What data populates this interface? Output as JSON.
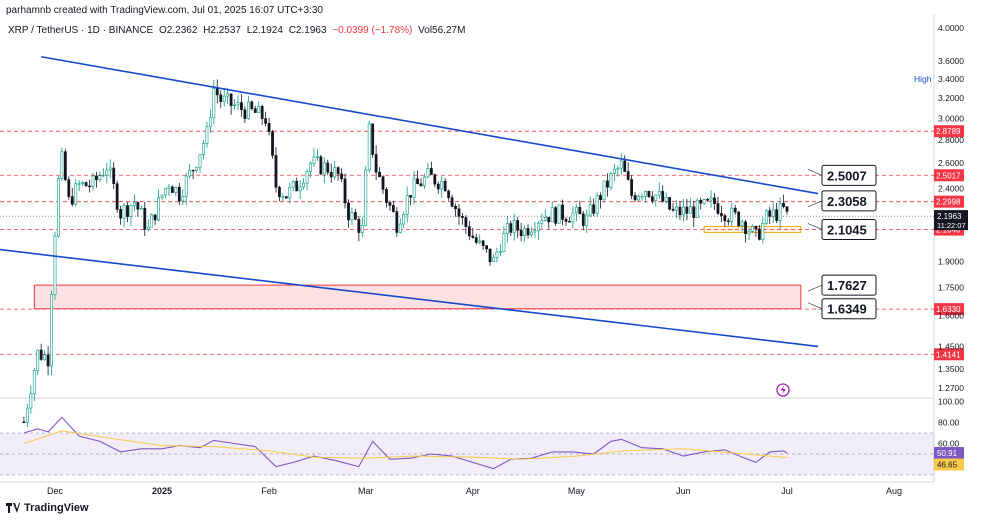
{
  "header": {
    "author_line": "parhamnb created with TradingView.com, Jul 01, 2025 16:07 UTC+3:30"
  },
  "symbol_bar": {
    "title": "XRP / TetherUS · 1D · BINANCE",
    "open": "O2.2362",
    "high": "H2.2537",
    "low": "L2.1924",
    "close": "C2.1963",
    "change": "−0.0399 (−1.78%)",
    "volume": "Vol56.27M",
    "colors": {
      "down": "#f23645"
    }
  },
  "footer": {
    "brand": "TradingView"
  },
  "chart_data": [
    {
      "type": "candlestick",
      "series_name": "XRP / TetherUS",
      "timeframe": "1D",
      "x_ticks": [
        "Dec",
        "2025",
        "Feb",
        "Mar",
        "Apr",
        "May",
        "Jun",
        "Jul",
        "Aug"
      ],
      "x_tick_dates": [
        "2024-12-01",
        "2025-01-01",
        "2025-02-01",
        "2025-03-01",
        "2025-04-01",
        "2025-05-01",
        "2025-06-01",
        "2025-07-01",
        "2025-08-01"
      ],
      "y_ticks": [
        4.0,
        3.6,
        3.4,
        3.2,
        3.0,
        2.8,
        2.6,
        2.4,
        2.2,
        1.9,
        1.75,
        1.6,
        1.45,
        1.35,
        1.27
      ],
      "y_tick_labels": [
        "4.0000",
        "3.6000",
        "3.4000",
        "3.2000",
        "3.0000",
        "2.8000",
        "2.6000",
        "2.4000",
        "2.2000",
        "1.9000",
        "1.7500",
        "1.6000",
        "1.4500",
        "1.3500",
        "1.2700"
      ],
      "ylim": [
        1.21,
        4.1
      ],
      "y_scale": "log",
      "high_label": "High",
      "current": {
        "price": "2.1963",
        "countdown": "11:22:07"
      },
      "colors": {
        "up": "#089981",
        "down": "#131722",
        "trend": "#1848cc",
        "level": "#f23645",
        "zone": "#f5a623"
      },
      "trendlines": [
        {
          "from": [
            "2024-11-27",
            3.65
          ],
          "to": [
            "2025-07-10",
            2.36
          ]
        },
        {
          "from": [
            "2024-11-05",
            2.0
          ],
          "to": [
            "2025-07-10",
            1.45
          ]
        }
      ],
      "horizontal_levels": [
        "2.8789",
        "2.5017",
        "2.2998",
        "2.1040",
        "1.6330",
        "1.4141"
      ],
      "callouts": [
        "2.5007",
        "2.3058",
        "2.1045",
        "1.7627",
        "1.6349"
      ],
      "zones": [
        {
          "from": "2024-11-25",
          "to": "2025-07-05",
          "low": 1.6349,
          "high": 1.7627,
          "color": "#f23645"
        },
        {
          "from": "2025-06-07",
          "to": "2025-07-05",
          "low": 2.085,
          "high": 2.125,
          "color": "#f5a623"
        }
      ],
      "closes": [
        [
          "2024-11-22",
          1.14
        ],
        [
          "2024-11-26",
          1.42
        ],
        [
          "2024-11-29",
          1.4
        ],
        [
          "2024-12-02",
          2.45
        ],
        [
          "2024-12-03",
          2.62
        ],
        [
          "2024-12-05",
          2.3
        ],
        [
          "2024-12-08",
          2.42
        ],
        [
          "2024-12-12",
          2.43
        ],
        [
          "2024-12-16",
          2.58
        ],
        [
          "2024-12-20",
          2.22
        ],
        [
          "2024-12-24",
          2.3
        ],
        [
          "2024-12-28",
          2.1
        ],
        [
          "2025-01-01",
          2.35
        ],
        [
          "2025-01-03",
          2.45
        ],
        [
          "2025-01-06",
          2.36
        ],
        [
          "2025-01-10",
          2.56
        ],
        [
          "2025-01-14",
          2.85
        ],
        [
          "2025-01-16",
          3.3
        ],
        [
          "2025-01-18",
          3.18
        ],
        [
          "2025-01-22",
          3.12
        ],
        [
          "2025-01-25",
          3.08
        ],
        [
          "2025-01-28",
          3.05
        ],
        [
          "2025-01-31",
          3.0
        ],
        [
          "2025-02-03",
          2.42
        ],
        [
          "2025-02-06",
          2.35
        ],
        [
          "2025-02-09",
          2.42
        ],
        [
          "2025-02-13",
          2.6
        ],
        [
          "2025-02-18",
          2.56
        ],
        [
          "2025-02-21",
          2.5
        ],
        [
          "2025-02-24",
          2.22
        ],
        [
          "2025-02-28",
          2.1
        ],
        [
          "2025-03-02",
          2.88
        ],
        [
          "2025-03-04",
          2.55
        ],
        [
          "2025-03-07",
          2.32
        ],
        [
          "2025-03-10",
          2.15
        ],
        [
          "2025-03-14",
          2.38
        ],
        [
          "2025-03-19",
          2.49
        ],
        [
          "2025-03-24",
          2.44
        ],
        [
          "2025-03-28",
          2.2
        ],
        [
          "2025-04-02",
          2.02
        ],
        [
          "2025-04-07",
          1.9
        ],
        [
          "2025-04-09",
          2.02
        ],
        [
          "2025-04-12",
          2.12
        ],
        [
          "2025-04-16",
          2.1
        ],
        [
          "2025-04-21",
          2.2
        ],
        [
          "2025-04-25",
          2.21
        ],
        [
          "2025-04-30",
          2.21
        ],
        [
          "2025-05-04",
          2.17
        ],
        [
          "2025-05-08",
          2.35
        ],
        [
          "2025-05-12",
          2.52
        ],
        [
          "2025-05-14",
          2.58
        ],
        [
          "2025-05-17",
          2.35
        ],
        [
          "2025-05-21",
          2.4
        ],
        [
          "2025-05-25",
          2.33
        ],
        [
          "2025-05-29",
          2.22
        ],
        [
          "2025-06-02",
          2.23
        ],
        [
          "2025-06-06",
          2.25
        ],
        [
          "2025-06-10",
          2.29
        ],
        [
          "2025-06-14",
          2.21
        ],
        [
          "2025-06-18",
          2.17
        ],
        [
          "2025-06-22",
          2.05
        ],
        [
          "2025-06-25",
          2.18
        ],
        [
          "2025-06-28",
          2.22
        ],
        [
          "2025-06-30",
          2.24
        ],
        [
          "2025-07-01",
          2.1963
        ]
      ]
    },
    {
      "type": "line",
      "name": "RSI",
      "y_ticks": [
        100,
        80,
        60
      ],
      "y_tick_labels": [
        "100.00",
        "80.00",
        "60.00"
      ],
      "ylim": [
        0,
        100
      ],
      "band": [
        30,
        70
      ],
      "rsi_label": "50.91",
      "ma_label": "46.65",
      "series": [
        {
          "color": "#7e57c2",
          "values": [
            [
              "2024-11-22",
              70
            ],
            [
              "2024-11-26",
              74
            ],
            [
              "2024-11-29",
              71
            ],
            [
              "2024-12-03",
              85
            ],
            [
              "2024-12-08",
              67
            ],
            [
              "2024-12-14",
              62
            ],
            [
              "2024-12-20",
              52
            ],
            [
              "2024-12-26",
              55
            ],
            [
              "2025-01-01",
              55
            ],
            [
              "2025-01-06",
              58
            ],
            [
              "2025-01-12",
              56
            ],
            [
              "2025-01-16",
              63
            ],
            [
              "2025-01-22",
              60
            ],
            [
              "2025-01-28",
              57
            ],
            [
              "2025-02-03",
              38
            ],
            [
              "2025-02-08",
              42
            ],
            [
              "2025-02-14",
              48
            ],
            [
              "2025-02-20",
              44
            ],
            [
              "2025-02-27",
              38
            ],
            [
              "2025-03-03",
              62
            ],
            [
              "2025-03-08",
              45
            ],
            [
              "2025-03-14",
              46
            ],
            [
              "2025-03-20",
              50
            ],
            [
              "2025-03-26",
              48
            ],
            [
              "2025-04-01",
              42
            ],
            [
              "2025-04-07",
              36
            ],
            [
              "2025-04-12",
              45
            ],
            [
              "2025-04-18",
              46
            ],
            [
              "2025-04-24",
              52
            ],
            [
              "2025-04-30",
              52
            ],
            [
              "2025-05-06",
              50
            ],
            [
              "2025-05-11",
              62
            ],
            [
              "2025-05-14",
              64
            ],
            [
              "2025-05-20",
              56
            ],
            [
              "2025-05-26",
              55
            ],
            [
              "2025-06-01",
              48
            ],
            [
              "2025-06-07",
              52
            ],
            [
              "2025-06-13",
              54
            ],
            [
              "2025-06-18",
              47
            ],
            [
              "2025-06-22",
              42
            ],
            [
              "2025-06-26",
              52
            ],
            [
              "2025-06-30",
              53
            ],
            [
              "2025-07-01",
              50.91
            ]
          ]
        },
        {
          "color": "#f7c948",
          "values": [
            [
              "2024-11-22",
              60
            ],
            [
              "2024-12-03",
              72
            ],
            [
              "2024-12-15",
              66
            ],
            [
              "2025-01-01",
              58
            ],
            [
              "2025-01-16",
              57
            ],
            [
              "2025-02-01",
              53
            ],
            [
              "2025-02-14",
              47
            ],
            [
              "2025-03-01",
              46
            ],
            [
              "2025-03-15",
              48
            ],
            [
              "2025-04-01",
              47
            ],
            [
              "2025-04-15",
              45
            ],
            [
              "2025-05-01",
              48
            ],
            [
              "2025-05-15",
              53
            ],
            [
              "2025-06-01",
              55
            ],
            [
              "2025-06-15",
              51
            ],
            [
              "2025-07-01",
              46.65
            ]
          ]
        }
      ]
    }
  ]
}
